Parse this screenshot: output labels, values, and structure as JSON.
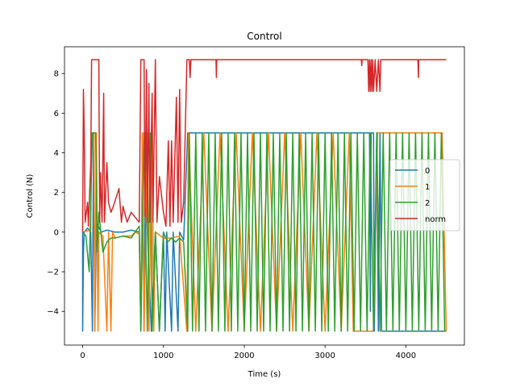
{
  "chart_data": {
    "type": "line",
    "title": "Control",
    "xlabel": "Time (s)",
    "ylabel": "Control (N)",
    "xlim": [
      -225,
      4725
    ],
    "ylim": [
      -5.7,
      9.35
    ],
    "xticks": [
      0,
      1000,
      2000,
      3000,
      4000
    ],
    "yticks": [
      -4,
      -2,
      0,
      2,
      4,
      6,
      8
    ],
    "grid": false,
    "legend_position": "center-right",
    "series": [
      {
        "name": "0",
        "color": "#1f77b4",
        "points": [
          [
            0,
            0
          ],
          [
            0,
            -5
          ],
          [
            10,
            -1
          ],
          [
            20,
            0
          ],
          [
            60,
            0.2
          ],
          [
            100,
            0
          ],
          [
            120,
            -5
          ],
          [
            135,
            5
          ],
          [
            150,
            -5
          ],
          [
            170,
            0.5
          ],
          [
            230,
            0
          ],
          [
            300,
            0.1
          ],
          [
            400,
            0
          ],
          [
            500,
            0
          ],
          [
            600,
            0.1
          ],
          [
            700,
            0
          ],
          [
            720,
            -5
          ],
          [
            740,
            5
          ],
          [
            760,
            -5
          ],
          [
            780,
            5
          ],
          [
            800,
            0
          ],
          [
            850,
            -5
          ],
          [
            900,
            0
          ],
          [
            950,
            -5
          ],
          [
            1000,
            0
          ],
          [
            1020,
            -5
          ],
          [
            1040,
            0
          ],
          [
            1100,
            -5
          ],
          [
            1120,
            0
          ],
          [
            1180,
            -5
          ],
          [
            1200,
            0
          ],
          [
            1250,
            -0.4
          ],
          [
            1300,
            5
          ],
          [
            3550,
            5
          ],
          [
            3560,
            -4
          ],
          [
            3570,
            5
          ],
          [
            3600,
            5
          ],
          [
            3610,
            -5
          ],
          [
            3640,
            5
          ],
          [
            3660,
            -5
          ],
          [
            3680,
            5
          ],
          [
            3700,
            -5
          ],
          [
            4500,
            -5
          ]
        ]
      },
      {
        "name": "1",
        "color": "#ff7f0e",
        "points": [
          [
            0,
            0
          ],
          [
            100,
            0.1
          ],
          [
            110,
            5
          ],
          [
            140,
            5
          ],
          [
            150,
            -5
          ],
          [
            170,
            5
          ],
          [
            190,
            -5
          ],
          [
            200,
            0
          ],
          [
            250,
            -0.2
          ],
          [
            300,
            -5
          ],
          [
            320,
            0
          ],
          [
            350,
            -5
          ],
          [
            370,
            0
          ],
          [
            400,
            -0.3
          ],
          [
            500,
            -0.2
          ],
          [
            600,
            -0.2
          ],
          [
            650,
            0
          ],
          [
            700,
            -0.1
          ],
          [
            720,
            -5
          ],
          [
            740,
            5
          ],
          [
            760,
            -5
          ],
          [
            800,
            5
          ],
          [
            820,
            -5
          ],
          [
            860,
            5
          ],
          [
            880,
            -5
          ],
          [
            900,
            0
          ],
          [
            1000,
            -0.3
          ],
          [
            1100,
            -0.3
          ],
          [
            1200,
            -0.2
          ],
          [
            1290,
            -5
          ],
          [
            1310,
            5
          ],
          [
            1400,
            -5
          ],
          [
            1500,
            5
          ],
          [
            1600,
            -5
          ],
          [
            1700,
            5
          ],
          [
            1800,
            -5
          ],
          [
            1900,
            5
          ],
          [
            2000,
            -5
          ],
          [
            2100,
            5
          ],
          [
            2200,
            -5
          ],
          [
            2300,
            5
          ],
          [
            2400,
            -5
          ],
          [
            2500,
            5
          ],
          [
            2600,
            -5
          ],
          [
            2700,
            5
          ],
          [
            2800,
            -5
          ],
          [
            2900,
            5
          ],
          [
            3000,
            -5
          ],
          [
            3100,
            5
          ],
          [
            3200,
            -5
          ],
          [
            3300,
            5
          ],
          [
            3350,
            -5
          ],
          [
            3600,
            -5
          ],
          [
            3650,
            5
          ],
          [
            4450,
            5
          ],
          [
            4500,
            -5
          ]
        ]
      },
      {
        "name": "2",
        "color": "#2ca02c",
        "points": [
          [
            0,
            0
          ],
          [
            40,
            -0.2
          ],
          [
            80,
            -2
          ],
          [
            120,
            5
          ],
          [
            160,
            5
          ],
          [
            180,
            -1
          ],
          [
            200,
            1
          ],
          [
            250,
            -1
          ],
          [
            300,
            -0.5
          ],
          [
            350,
            -0.3
          ],
          [
            400,
            -0.3
          ],
          [
            500,
            -0.2
          ],
          [
            600,
            -0.3
          ],
          [
            700,
            0.3
          ],
          [
            720,
            -5
          ],
          [
            760,
            5
          ],
          [
            800,
            -5
          ],
          [
            840,
            5
          ],
          [
            860,
            -5
          ],
          [
            900,
            0
          ],
          [
            950,
            -5
          ],
          [
            1000,
            0
          ],
          [
            1050,
            -0.5
          ],
          [
            1100,
            -0.3
          ],
          [
            1150,
            -0.5
          ],
          [
            1200,
            -0.3
          ],
          [
            1250,
            -0.5
          ],
          [
            1300,
            -5
          ],
          [
            1320,
            5
          ],
          [
            1360,
            -5
          ],
          [
            1400,
            5
          ],
          [
            1440,
            -5
          ],
          [
            1480,
            5
          ],
          [
            1520,
            -5
          ],
          [
            1560,
            5
          ],
          [
            1600,
            -5
          ],
          [
            1640,
            5
          ],
          [
            1680,
            -5
          ],
          [
            1720,
            5
          ],
          [
            1760,
            -5
          ],
          [
            1800,
            5
          ],
          [
            1840,
            -5
          ],
          [
            1880,
            5
          ],
          [
            1920,
            -5
          ],
          [
            1960,
            5
          ],
          [
            2000,
            -5
          ],
          [
            2040,
            5
          ],
          [
            2080,
            -5
          ],
          [
            2120,
            5
          ],
          [
            2160,
            -5
          ],
          [
            2200,
            5
          ],
          [
            2240,
            -5
          ],
          [
            2280,
            5
          ],
          [
            2320,
            -5
          ],
          [
            2360,
            5
          ],
          [
            2400,
            -5
          ],
          [
            2440,
            5
          ],
          [
            2480,
            -5
          ],
          [
            2520,
            5
          ],
          [
            2560,
            -5
          ],
          [
            2600,
            5
          ],
          [
            2640,
            -5
          ],
          [
            2680,
            5
          ],
          [
            2720,
            -5
          ],
          [
            2760,
            5
          ],
          [
            2800,
            -5
          ],
          [
            2840,
            5
          ],
          [
            2880,
            -5
          ],
          [
            2920,
            5
          ],
          [
            2960,
            -5
          ],
          [
            3000,
            5
          ],
          [
            3040,
            -5
          ],
          [
            3080,
            5
          ],
          [
            3120,
            -5
          ],
          [
            3160,
            5
          ],
          [
            3200,
            -5
          ],
          [
            3240,
            5
          ],
          [
            3280,
            -5
          ],
          [
            3320,
            5
          ],
          [
            3360,
            -5
          ],
          [
            3400,
            5
          ],
          [
            3440,
            -5
          ],
          [
            3480,
            5
          ],
          [
            3520,
            -5
          ],
          [
            3560,
            5
          ],
          [
            3600,
            -5
          ],
          [
            3640,
            5
          ],
          [
            3680,
            -5
          ],
          [
            3720,
            5
          ],
          [
            3760,
            -5
          ],
          [
            3800,
            5
          ],
          [
            3840,
            -5
          ],
          [
            3880,
            5
          ],
          [
            3920,
            -5
          ],
          [
            3960,
            5
          ],
          [
            4000,
            -5
          ],
          [
            4040,
            5
          ],
          [
            4080,
            -5
          ],
          [
            4120,
            5
          ],
          [
            4160,
            -5
          ],
          [
            4200,
            5
          ],
          [
            4240,
            -5
          ],
          [
            4280,
            5
          ],
          [
            4320,
            -5
          ],
          [
            4360,
            5
          ],
          [
            4400,
            -5
          ],
          [
            4440,
            5
          ],
          [
            4480,
            -5
          ],
          [
            4500,
            -5
          ]
        ]
      },
      {
        "name": "norm",
        "color": "#d62728",
        "points": [
          [
            0,
            0
          ],
          [
            10,
            7.2
          ],
          [
            20,
            5
          ],
          [
            30,
            0.5
          ],
          [
            60,
            1.5
          ],
          [
            70,
            0.3
          ],
          [
            100,
            3.5
          ],
          [
            110,
            8.7
          ],
          [
            200,
            8.7
          ],
          [
            210,
            0.5
          ],
          [
            220,
            3
          ],
          [
            240,
            0.5
          ],
          [
            260,
            7
          ],
          [
            270,
            0.5
          ],
          [
            300,
            3.5
          ],
          [
            320,
            1.5
          ],
          [
            350,
            1.0
          ],
          [
            380,
            1.3
          ],
          [
            450,
            2.2
          ],
          [
            480,
            0.5
          ],
          [
            500,
            1.3
          ],
          [
            550,
            0.5
          ],
          [
            600,
            1.0
          ],
          [
            700,
            0.5
          ],
          [
            720,
            8.7
          ],
          [
            760,
            8.7
          ],
          [
            770,
            0.8
          ],
          [
            790,
            8.2
          ],
          [
            800,
            0.5
          ],
          [
            820,
            7.5
          ],
          [
            830,
            0.5
          ],
          [
            860,
            7.0
          ],
          [
            870,
            0.5
          ],
          [
            900,
            8.7
          ],
          [
            920,
            0.5
          ],
          [
            950,
            2.8
          ],
          [
            1000,
            1.0
          ],
          [
            1030,
            0.3
          ],
          [
            1060,
            4.6
          ],
          [
            1080,
            0.3
          ],
          [
            1100,
            4.6
          ],
          [
            1120,
            0.5
          ],
          [
            1160,
            6.8
          ],
          [
            1180,
            0.5
          ],
          [
            1200,
            7.2
          ],
          [
            1220,
            0.5
          ],
          [
            1250,
            1.5
          ],
          [
            1290,
            8.7
          ],
          [
            1300,
            8.7
          ],
          [
            1320,
            8.7
          ],
          [
            1330,
            7.8
          ],
          [
            1340,
            8.7
          ],
          [
            1650,
            8.7
          ],
          [
            1655,
            7.8
          ],
          [
            1660,
            8.7
          ],
          [
            3450,
            8.7
          ],
          [
            3455,
            8.4
          ],
          [
            3460,
            8.7
          ],
          [
            3530,
            8.7
          ],
          [
            3540,
            7.1
          ],
          [
            3550,
            8.7
          ],
          [
            3560,
            7.1
          ],
          [
            3570,
            8.7
          ],
          [
            3580,
            7.1
          ],
          [
            3590,
            8.7
          ],
          [
            3600,
            7.1
          ],
          [
            3620,
            8.7
          ],
          [
            3640,
            7.1
          ],
          [
            3660,
            8.7
          ],
          [
            3680,
            7.1
          ],
          [
            3690,
            8.7
          ],
          [
            4150,
            8.7
          ],
          [
            4155,
            7.8
          ],
          [
            4160,
            8.7
          ],
          [
            4500,
            8.7
          ]
        ]
      }
    ]
  }
}
